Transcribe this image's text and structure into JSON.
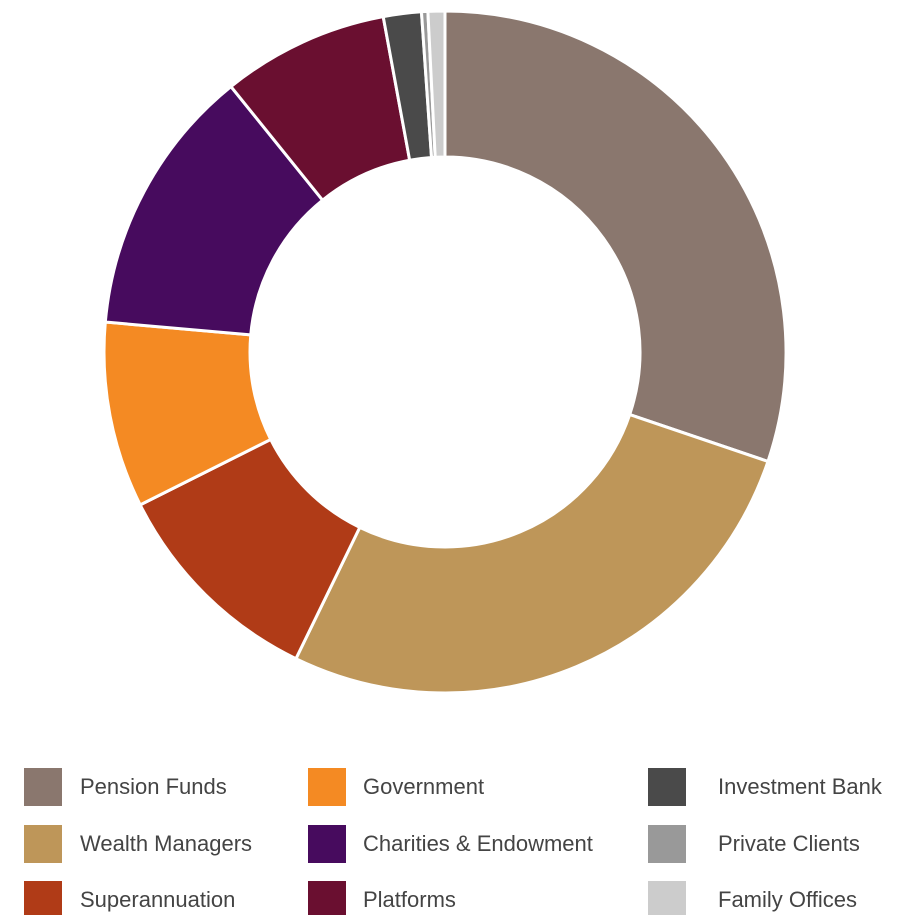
{
  "chart_data": {
    "type": "donut",
    "categories": [
      "Pension Funds",
      "Wealth Managers",
      "Superannuation",
      "Government",
      "Charities & Endowment",
      "Platforms",
      "Investment Bank",
      "Private Clients",
      "Family Offices"
    ],
    "values": [
      30.2,
      27,
      10.4,
      8.8,
      12.8,
      7.9,
      1.8,
      0.3,
      0.8
    ],
    "colors": [
      "#8a776e",
      "#be9659",
      "#b03b17",
      "#f48a23",
      "#470b5e",
      "#6a0f30",
      "#4a4a4a",
      "#999999",
      "#cccccc"
    ],
    "legend": "bottom"
  }
}
